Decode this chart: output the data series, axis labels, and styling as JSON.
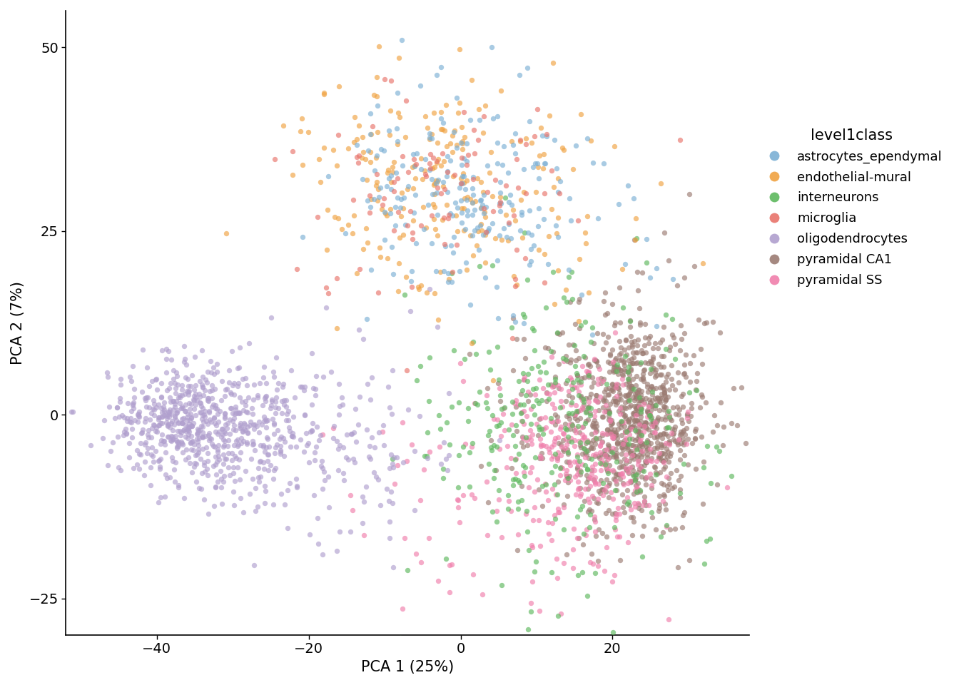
{
  "xlabel": "PCA 1 (25%)",
  "ylabel": "PCA 2 (7%)",
  "legend_title": "level1class",
  "xlim": [
    -52,
    38
  ],
  "ylim": [
    -30,
    55
  ],
  "xticks": [
    -40,
    -20,
    0,
    20
  ],
  "yticks": [
    -25,
    0,
    25,
    50
  ],
  "cell_types": [
    "astrocytes_ependymal",
    "endothelial-mural",
    "interneurons",
    "microglia",
    "oligodendrocytes",
    "pyramidal CA1",
    "pyramidal SS"
  ],
  "colors": {
    "astrocytes_ependymal": "#7BAFD4",
    "endothelial-mural": "#F0A241",
    "interneurons": "#5DB85D",
    "microglia": "#E8736A",
    "oligodendrocytes": "#B09FCE",
    "pyramidal CA1": "#9B7B72",
    "pyramidal SS": "#F07EAB"
  },
  "marker_size": 28,
  "alpha": 0.65,
  "background_color": "#FFFFFF",
  "axis_color": "#000000",
  "font_size": 15,
  "legend_font_size": 13,
  "seed": 42
}
